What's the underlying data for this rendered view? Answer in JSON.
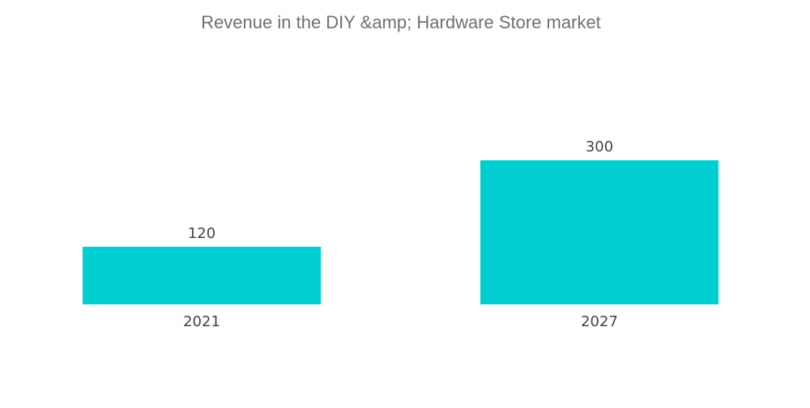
{
  "chart_data": {
    "type": "bar",
    "title": "Revenue in the DIY &amp; Hardware Store market",
    "categories": [
      "2021",
      "2027"
    ],
    "values": [
      120,
      300
    ],
    "ylim": [
      0,
      300
    ],
    "bar_color": "#00CED1",
    "grid": false,
    "legend": "none"
  }
}
